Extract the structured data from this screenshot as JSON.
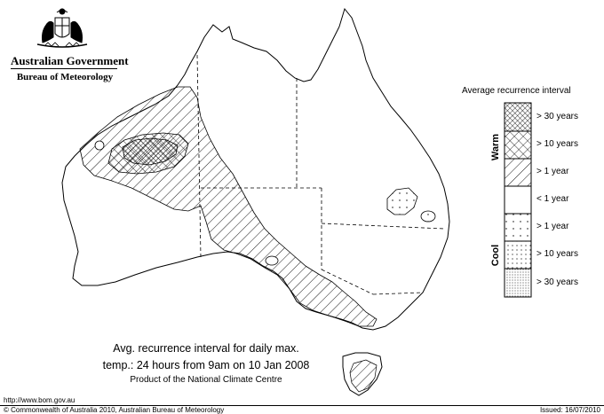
{
  "header": {
    "government": "Australian Government",
    "bureau": "Bureau of Meteorology",
    "crest_alt": "Commonwealth Coat of Arms"
  },
  "legend": {
    "title": "Average recurrence interval",
    "warm_label": "Warm",
    "cool_label": "Cool",
    "items": [
      {
        "label": "> 30 years",
        "pattern": "crosshatch-dense"
      },
      {
        "label": "> 10 years",
        "pattern": "crosshatch"
      },
      {
        "label": "> 1 year",
        "pattern": "diagonal"
      },
      {
        "label": "< 1 year",
        "pattern": "blank"
      },
      {
        "label": "> 1 year",
        "pattern": "dots-sparse"
      },
      {
        "label": "> 10 years",
        "pattern": "dots"
      },
      {
        "label": "> 30 years",
        "pattern": "dots-dense"
      }
    ]
  },
  "caption": {
    "line1": "Avg. recurrence interval for daily max.",
    "line2": "temp.: 24 hours from 9am on 10 Jan 2008",
    "line3": "Product of the National Climate Centre"
  },
  "footer": {
    "url": "http://www.bom.gov.au",
    "copyright": "© Commonwealth of Australia 2010, Australian Bureau of Meteorology",
    "issued": "Issued: 16/07/2010"
  },
  "colors": {
    "ink": "#000000",
    "background": "#ffffff"
  }
}
